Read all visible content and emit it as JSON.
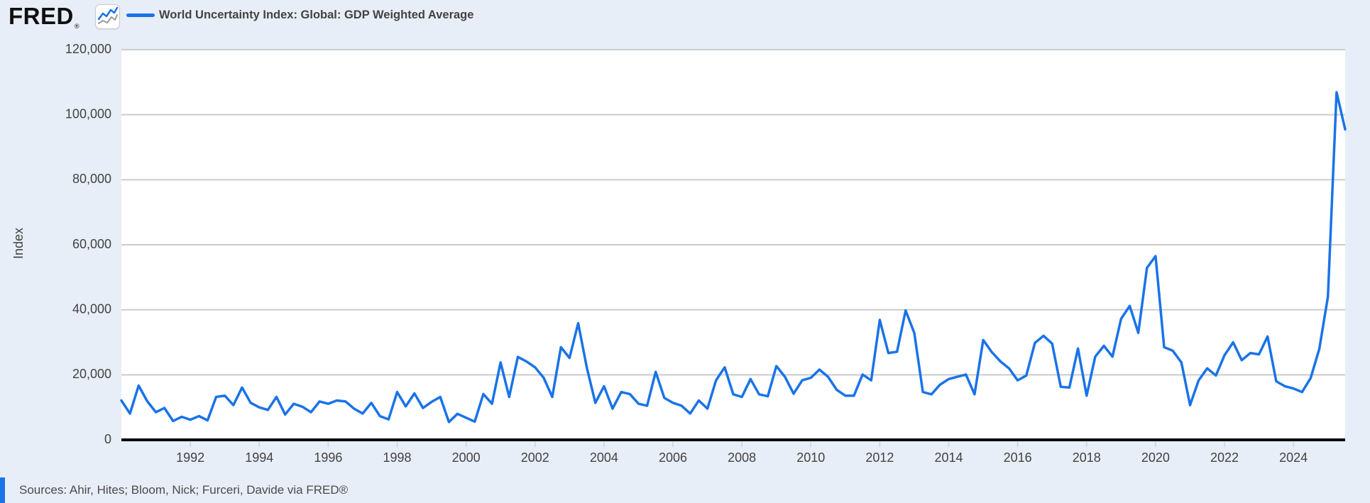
{
  "page": {
    "background_color": "#e8eef7"
  },
  "header": {
    "logo": {
      "text": "FRED",
      "registered_mark": "®"
    },
    "chart_icon": "line-chart-icon",
    "legend": {
      "swatch_color": "#1a73e8",
      "label": "World Uncertainty Index: Global: GDP Weighted Average"
    }
  },
  "footer": {
    "sources": "Sources: Ahir, Hites; Bloom, Nick; Furceri, Davide via FRED®"
  },
  "chart_data": {
    "type": "line",
    "title": "World Uncertainty Index: Global: GDP Weighted Average",
    "xlabel": "",
    "ylabel": "Index",
    "frequency": "quarterly",
    "start_period": "1990Q1",
    "end_period": "2025Q3",
    "values": [
      12100,
      8100,
      16700,
      11900,
      8500,
      9800,
      5800,
      7100,
      6200,
      7300,
      6000,
      13200,
      13600,
      10700,
      16100,
      11400,
      10000,
      9200,
      13200,
      7800,
      11100,
      10200,
      8500,
      11800,
      11100,
      12100,
      11800,
      9600,
      8100,
      11400,
      7300,
      6300,
      14700,
      10300,
      14300,
      9800,
      11700,
      13200,
      5500,
      8000,
      6800,
      5600,
      14100,
      11100,
      23800,
      13200,
      25500,
      24100,
      22300,
      19100,
      13200,
      28500,
      25200,
      35900,
      22300,
      11400,
      16500,
      9600,
      14700,
      14100,
      11100,
      10500,
      20900,
      12900,
      11400,
      10500,
      8100,
      12100,
      9600,
      18300,
      22300,
      14000,
      13200,
      18700,
      14000,
      13400,
      22700,
      19400,
      14200,
      18300,
      19100,
      21600,
      19400,
      15400,
      13600,
      13600,
      20100,
      18300,
      36900,
      26700,
      27100,
      39800,
      32900,
      14700,
      14000,
      17000,
      18700,
      19400,
      20100,
      14000,
      30700,
      27000,
      24100,
      22000,
      18300,
      19800,
      29800,
      32000,
      29600,
      16300,
      16100,
      28100,
      13600,
      25600,
      28900,
      25600,
      37200,
      41200,
      32900,
      52900,
      56500,
      28500,
      27400,
      23800,
      10700,
      18300,
      22000,
      19800,
      26000,
      30000,
      24500,
      26700,
      26300,
      31800,
      18000,
      16500,
      15800,
      14700,
      19000,
      28000,
      44000,
      106900,
      95500
    ],
    "ylim": [
      0,
      120000
    ],
    "xlim_years": [
      1990,
      2025.5
    ],
    "y_tick_values": [
      0,
      20000,
      40000,
      60000,
      80000,
      100000,
      120000
    ],
    "y_tick_labels": [
      "0",
      "20,000",
      "40,000",
      "60,000",
      "80,000",
      "100,000",
      "120,000"
    ],
    "x_tick_years": [
      1992,
      1994,
      1996,
      1998,
      2000,
      2002,
      2004,
      2006,
      2008,
      2010,
      2012,
      2014,
      2016,
      2018,
      2020,
      2022,
      2024
    ],
    "x_tick_labels": [
      "1992",
      "1994",
      "1996",
      "1998",
      "2000",
      "2002",
      "2004",
      "2006",
      "2008",
      "2010",
      "2012",
      "2014",
      "2016",
      "2018",
      "2020",
      "2022",
      "2024"
    ],
    "grid": true,
    "legend_position": "top-left",
    "line_color": "#1a73e8",
    "icon_secondary_line_color": "#9a9a9a",
    "gridline_color": "#cbcbcb",
    "axis_color": "#000000",
    "tick_label_color": "#424242",
    "plot_background": "#ffffff"
  }
}
